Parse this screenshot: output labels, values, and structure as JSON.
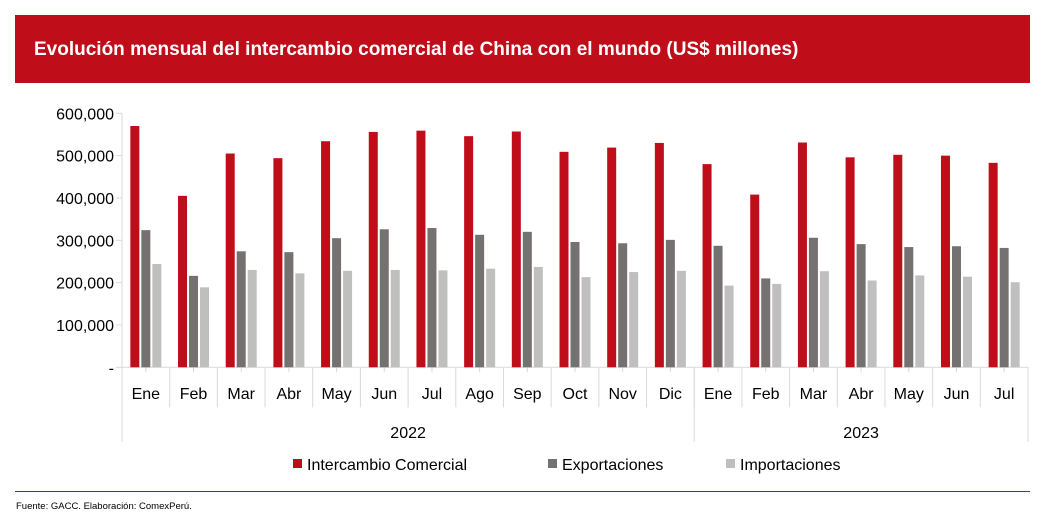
{
  "chart_data": {
    "type": "bar",
    "title": "Evolución mensual del intercambio comercial de China con el mundo (US$ millones)",
    "xlabel": "",
    "ylabel": "",
    "ylim": [
      0,
      600000
    ],
    "yticks": [
      "-",
      "100,000",
      "200,000",
      "300,000",
      "400,000",
      "500,000",
      "600,000"
    ],
    "ytick_values": [
      0,
      100000,
      200000,
      300000,
      400000,
      500000,
      600000
    ],
    "categories": [
      "Ene",
      "Feb",
      "Mar",
      "Abr",
      "May",
      "Jun",
      "Jul",
      "Ago",
      "Sep",
      "Oct",
      "Nov",
      "Dic",
      "Ene",
      "Feb",
      "Mar",
      "Abr",
      "May",
      "Jun",
      "Jul"
    ],
    "groups": [
      {
        "label": "2022",
        "count": 12
      },
      {
        "label": "2023",
        "count": 7
      }
    ],
    "series": [
      {
        "name": "Intercambio Comercial",
        "color": "#c00d1a",
        "values": [
          570000,
          405000,
          505000,
          494000,
          534000,
          556000,
          559000,
          546000,
          557000,
          509000,
          519000,
          530000,
          480000,
          408000,
          531000,
          496000,
          502000,
          500000,
          483000
        ]
      },
      {
        "name": "Exportaciones",
        "color": "#767171",
        "values": [
          324000,
          216000,
          274000,
          272000,
          305000,
          326000,
          329000,
          313000,
          320000,
          296000,
          293000,
          301000,
          287000,
          210000,
          306000,
          291000,
          284000,
          286000,
          282000
        ]
      },
      {
        "name": "Importaciones",
        "color": "#bfbfbf",
        "values": [
          244000,
          189000,
          230000,
          222000,
          228000,
          230000,
          229000,
          233000,
          237000,
          213000,
          225000,
          228000,
          193000,
          197000,
          227000,
          205000,
          217000,
          214000,
          201000
        ]
      }
    ],
    "legend": "bottom",
    "grid": false
  },
  "footer": "Fuente: GACC. Elaboración: ComexPerú."
}
